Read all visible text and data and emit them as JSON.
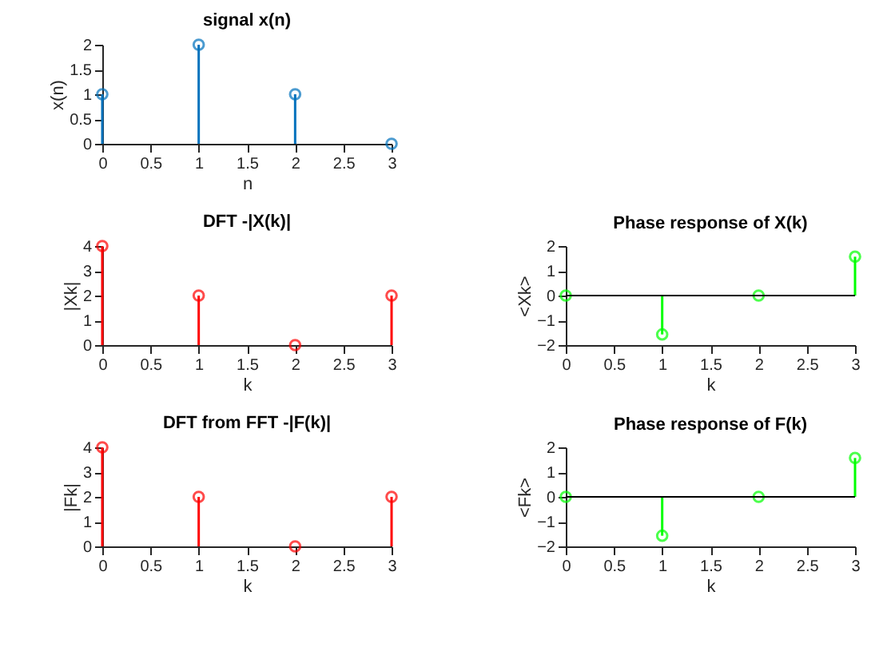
{
  "chart_data": [
    {
      "type": "lollipop",
      "title": "signal x(n)",
      "xlabel": "n",
      "ylabel": "x(n)",
      "x": [
        0,
        1,
        2,
        3
      ],
      "series": [
        {
          "color": "#0072bd",
          "values": [
            1,
            2,
            1,
            0
          ]
        }
      ],
      "xlim": [
        0,
        3
      ],
      "xticks": [
        0,
        0.5,
        1,
        1.5,
        2,
        2.5,
        3
      ],
      "ylim": [
        0,
        2
      ],
      "yticks": [
        0,
        0.5,
        1,
        1.5,
        2
      ],
      "marker": "circle",
      "grid": false
    },
    {
      "type": "lollipop",
      "title": "DFT -|X(k)|",
      "xlabel": "k",
      "ylabel": "|Xk|",
      "x": [
        0,
        1,
        2,
        3
      ],
      "series": [
        {
          "color": "#ff0000",
          "values": [
            4,
            2,
            0,
            2
          ]
        }
      ],
      "xlim": [
        0,
        3
      ],
      "xticks": [
        0,
        0.5,
        1,
        1.5,
        2,
        2.5,
        3
      ],
      "ylim": [
        0,
        4
      ],
      "yticks": [
        0,
        1,
        2,
        3,
        4
      ],
      "marker": "circle",
      "grid": false
    },
    {
      "type": "lollipop",
      "title": "Phase response of X(k)",
      "xlabel": "k",
      "ylabel": "<Xk>",
      "x": [
        0,
        1,
        2,
        3
      ],
      "series": [
        {
          "color": "#00ff00",
          "values": [
            0,
            -1.57,
            0,
            1.57
          ]
        }
      ],
      "xlim": [
        0,
        3
      ],
      "xticks": [
        0,
        0.5,
        1,
        1.5,
        2,
        2.5,
        3
      ],
      "ylim": [
        -2,
        2
      ],
      "yticks": [
        -2,
        -1,
        0,
        1,
        2
      ],
      "ref_lines": [
        {
          "axis": "y",
          "value": 0,
          "color": "#000000"
        }
      ],
      "marker": "circle",
      "grid": false
    },
    {
      "type": "lollipop",
      "title": "DFT from FFT -|F(k)|",
      "xlabel": "k",
      "ylabel": "|Fk|",
      "x": [
        0,
        1,
        2,
        3
      ],
      "series": [
        {
          "color": "#ff0000",
          "values": [
            4,
            2,
            0,
            2
          ]
        }
      ],
      "xlim": [
        0,
        3
      ],
      "xticks": [
        0,
        0.5,
        1,
        1.5,
        2,
        2.5,
        3
      ],
      "ylim": [
        0,
        4
      ],
      "yticks": [
        0,
        1,
        2,
        3,
        4
      ],
      "marker": "circle",
      "grid": false
    },
    {
      "type": "lollipop",
      "title": "Phase response of F(k)",
      "xlabel": "k",
      "ylabel": "<Fk>",
      "x": [
        0,
        1,
        2,
        3
      ],
      "series": [
        {
          "color": "#00ff00",
          "values": [
            0,
            -1.57,
            0,
            1.57
          ]
        }
      ],
      "xlim": [
        0,
        3
      ],
      "xticks": [
        0,
        0.5,
        1,
        1.5,
        2,
        2.5,
        3
      ],
      "ylim": [
        -2,
        2
      ],
      "yticks": [
        -2,
        -1,
        0,
        1,
        2
      ],
      "ref_lines": [
        {
          "axis": "y",
          "value": 0,
          "color": "#000000"
        }
      ],
      "marker": "circle",
      "grid": false
    }
  ]
}
